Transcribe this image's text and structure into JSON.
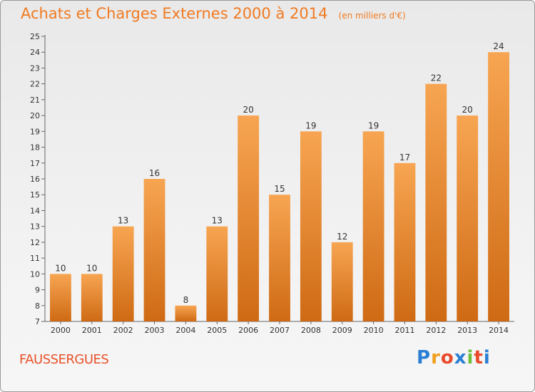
{
  "header": {
    "title": "Achats et Charges Externes 2000 à 2014",
    "unit": "(en milliers d'€)"
  },
  "footer": {
    "place": "FAUSSERGUES",
    "logo_letters": [
      "P",
      "r",
      "o",
      "x",
      "i",
      "t",
      "i"
    ],
    "logo_colors": [
      "#2a7fd4",
      "#f0a020",
      "#e84a2a",
      "#2a7fd4",
      "#6cbf3a",
      "#e84a2a",
      "#2a7fd4"
    ]
  },
  "colors": {
    "bar_top": "#f7a552",
    "bar_bottom": "#cf6a14",
    "axis": "#666666",
    "text": "#333333"
  },
  "chart_data": {
    "type": "bar",
    "categories": [
      "2000",
      "2001",
      "2002",
      "2003",
      "2004",
      "2005",
      "2006",
      "2007",
      "2008",
      "2009",
      "2010",
      "2011",
      "2012",
      "2013",
      "2014"
    ],
    "values": [
      10,
      10,
      13,
      16,
      8,
      13,
      20,
      15,
      19,
      12,
      19,
      17,
      22,
      20,
      24
    ],
    "ylim": [
      7,
      25
    ],
    "yticks": [
      7,
      8,
      9,
      10,
      11,
      12,
      13,
      14,
      15,
      16,
      17,
      18,
      19,
      20,
      21,
      22,
      23,
      24,
      25
    ],
    "grid": false
  }
}
